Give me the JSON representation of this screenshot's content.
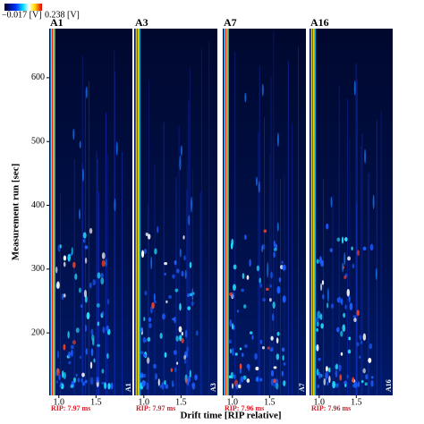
{
  "chart_data": {
    "type": "heatmap",
    "clim": [
      {
        "value": -0.017,
        "label": "−0.017 [V]"
      },
      {
        "value": 0.238,
        "label": "0.238 [V]"
      }
    ],
    "xlabel": "Drift time [RIP relative]",
    "ylabel": "Measurement run [sec]",
    "xlim": [
      0.87,
      1.99
    ],
    "ylim": [
      102,
      677
    ],
    "xticks": [
      {
        "value": 1,
        "label": "1.0"
      },
      {
        "value": 1.5,
        "label": "1.5"
      }
    ],
    "yticks": [
      200,
      300,
      400,
      500,
      600
    ],
    "panels": [
      {
        "title": "A1",
        "rip": "RIP: 7.97 ms"
      },
      {
        "title": "A3",
        "rip": "RIP: 7.97 ms"
      },
      {
        "title": "A7",
        "rip": "RIP: 7.96 ms"
      },
      {
        "title": "A16",
        "rip": "RIP: 7.96 ms"
      }
    ]
  }
}
